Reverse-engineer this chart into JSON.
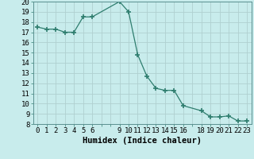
{
  "xlabel": "Humidex (Indice chaleur)",
  "x": [
    0,
    1,
    2,
    3,
    4,
    5,
    6,
    9,
    10,
    11,
    12,
    13,
    14,
    15,
    16,
    18,
    19,
    20,
    21,
    22,
    23
  ],
  "y": [
    17.5,
    17.3,
    17.3,
    17.0,
    17.0,
    18.5,
    18.5,
    20.0,
    19.0,
    14.8,
    12.7,
    11.5,
    11.3,
    11.3,
    9.8,
    9.3,
    8.7,
    8.7,
    8.8,
    8.3,
    8.3
  ],
  "line_color": "#2e7d6e",
  "marker": "+",
  "marker_size": 4,
  "bg_color": "#c8ecec",
  "grid_color_major": "#b0d0d0",
  "grid_color_minor": "#d8eded",
  "ylim": [
    8,
    20
  ],
  "yticks": [
    8,
    9,
    10,
    11,
    12,
    13,
    14,
    15,
    16,
    17,
    18,
    19,
    20
  ],
  "xticks": [
    0,
    1,
    2,
    3,
    4,
    5,
    6,
    9,
    10,
    11,
    12,
    13,
    14,
    15,
    16,
    18,
    19,
    20,
    21,
    22,
    23
  ],
  "xlabel_fontsize": 7.5,
  "tick_fontsize": 6.5,
  "lw": 0.9
}
